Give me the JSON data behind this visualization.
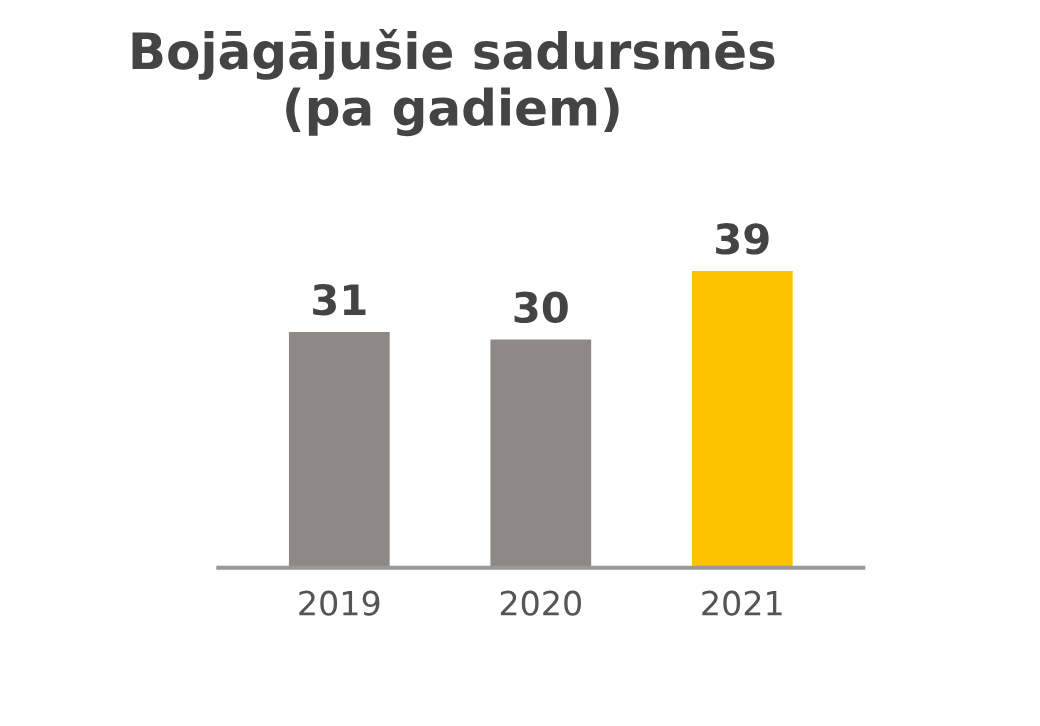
{
  "chart_data": {
    "type": "bar",
    "title": "Bojāgājušie sadursmēs\n(pa gadiem)",
    "categories": [
      "2019",
      "2020",
      "2021"
    ],
    "values": [
      31,
      30,
      39
    ],
    "colors": [
      "#8e8886",
      "#8e8886",
      "#fdc300"
    ],
    "data_labels": true,
    "grid": false,
    "legend": false
  }
}
